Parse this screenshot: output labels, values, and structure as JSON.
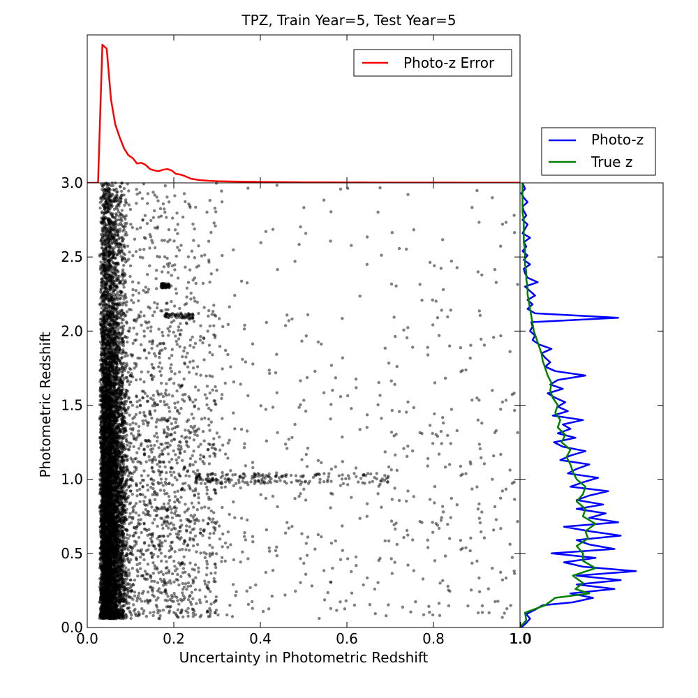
{
  "title": "TPZ, Train Year=5, Test Year=5",
  "chart_data": [
    {
      "id": "main-scatter",
      "type": "scatter",
      "xlabel": "Uncertainty in Photometric Redshift",
      "ylabel": "Photometric Redshift",
      "xlim": [
        0.0,
        1.0
      ],
      "ylim": [
        0.0,
        3.0
      ],
      "xticks": [
        "0.0",
        "0.2",
        "0.4",
        "0.6",
        "0.8",
        "1.0"
      ],
      "yticks": [
        "0.0",
        "0.5",
        "1.0",
        "1.5",
        "2.0",
        "2.5",
        "3.0"
      ],
      "grid": false,
      "point_color": "#000000",
      "point_opacity": 0.5,
      "density": {
        "uncertainty_mode": 0.04,
        "points_sampled": 9000,
        "redshift_bins": [
          0.1,
          0.2,
          0.3,
          0.4,
          0.5,
          0.6,
          0.7,
          0.8,
          0.9,
          1.0,
          1.1,
          1.2,
          1.3,
          1.4,
          1.5,
          1.6,
          1.7,
          1.8,
          1.9,
          2.0,
          2.1,
          2.2,
          2.3,
          2.4,
          2.5,
          2.6,
          2.7,
          2.8,
          2.9,
          3.0
        ],
        "relative_counts": [
          0.6,
          1.0,
          1.0,
          0.95,
          0.9,
          1.0,
          0.95,
          0.95,
          0.9,
          1.0,
          0.85,
          0.8,
          0.8,
          0.75,
          0.7,
          0.75,
          0.55,
          0.5,
          0.45,
          0.5,
          0.4,
          0.35,
          0.3,
          0.3,
          0.3,
          0.3,
          0.3,
          0.25,
          0.25,
          0.2
        ]
      },
      "features": [
        {
          "x_range": [
            0.18,
            0.245
          ],
          "y": 2.1
        },
        {
          "x_range": [
            0.17,
            0.19
          ],
          "y": 2.3
        }
      ]
    },
    {
      "id": "top-histogram",
      "type": "line",
      "legend": [
        {
          "name": "Photo-z Error",
          "color": "#ff0000"
        }
      ],
      "legend_position": "top-right",
      "xlim": [
        0.0,
        1.0
      ],
      "series": [
        {
          "name": "Photo-z Error",
          "color": "#ff0000",
          "x": [
            0.0,
            0.025,
            0.035,
            0.045,
            0.055,
            0.065,
            0.075,
            0.085,
            0.095,
            0.105,
            0.115,
            0.125,
            0.135,
            0.145,
            0.155,
            0.165,
            0.175,
            0.185,
            0.195,
            0.205,
            0.215,
            0.225,
            0.24,
            0.26,
            0.28,
            0.3,
            0.33,
            0.37,
            0.42,
            0.5,
            0.6,
            0.7,
            0.8,
            0.9,
            1.0
          ],
          "y": [
            0.0,
            0.0,
            1.0,
            0.97,
            0.6,
            0.42,
            0.33,
            0.25,
            0.2,
            0.18,
            0.14,
            0.145,
            0.13,
            0.1,
            0.09,
            0.085,
            0.095,
            0.1,
            0.09,
            0.065,
            0.06,
            0.05,
            0.03,
            0.02,
            0.015,
            0.012,
            0.01,
            0.008,
            0.006,
            0.004,
            0.003,
            0.002,
            0.002,
            0.001,
            0.001
          ]
        }
      ]
    },
    {
      "id": "right-histogram",
      "type": "line",
      "orientation": "horizontal",
      "legend": [
        {
          "name": "Photo-z",
          "color": "#0000ff"
        },
        {
          "name": "True z",
          "color": "#008000"
        }
      ],
      "legend_position": "top",
      "xticks": [
        "1.0"
      ],
      "ylim": [
        0.0,
        3.0
      ],
      "series": [
        {
          "name": "Photo-z",
          "color": "#0000ff",
          "redshift": [
            0.0,
            0.03,
            0.06,
            0.09,
            0.12,
            0.15,
            0.17,
            0.2,
            0.23,
            0.26,
            0.29,
            0.32,
            0.35,
            0.38,
            0.41,
            0.44,
            0.47,
            0.5,
            0.53,
            0.56,
            0.59,
            0.62,
            0.65,
            0.68,
            0.71,
            0.74,
            0.77,
            0.8,
            0.83,
            0.86,
            0.89,
            0.92,
            0.95,
            0.98,
            1.01,
            1.04,
            1.07,
            1.1,
            1.13,
            1.16,
            1.19,
            1.22,
            1.25,
            1.28,
            1.31,
            1.34,
            1.37,
            1.4,
            1.43,
            1.46,
            1.49,
            1.52,
            1.55,
            1.58,
            1.61,
            1.64,
            1.67,
            1.7,
            1.73,
            1.76,
            1.79,
            1.82,
            1.85,
            1.88,
            1.91,
            1.94,
            1.97,
            2.0,
            2.03,
            2.06,
            2.09,
            2.12,
            2.15,
            2.18,
            2.21,
            2.24,
            2.27,
            2.3,
            2.33,
            2.36,
            2.39,
            2.42,
            2.45,
            2.48,
            2.51,
            2.54,
            2.57,
            2.6,
            2.63,
            2.66,
            2.69,
            2.72,
            2.75,
            2.78,
            2.81,
            2.84,
            2.87,
            2.9,
            2.93,
            2.96,
            3.0
          ],
          "density": [
            0.01,
            0.05,
            0.08,
            0.05,
            0.12,
            0.18,
            0.42,
            0.58,
            0.4,
            0.75,
            0.45,
            0.8,
            0.45,
            0.92,
            0.5,
            0.35,
            0.6,
            0.25,
            0.75,
            0.55,
            0.45,
            0.8,
            0.55,
            0.35,
            0.78,
            0.55,
            0.68,
            0.45,
            0.66,
            0.45,
            0.55,
            0.7,
            0.4,
            0.5,
            0.62,
            0.38,
            0.45,
            0.55,
            0.32,
            0.4,
            0.52,
            0.34,
            0.27,
            0.44,
            0.3,
            0.4,
            0.34,
            0.5,
            0.26,
            0.38,
            0.3,
            0.36,
            0.28,
            0.22,
            0.34,
            0.24,
            0.3,
            0.52,
            0.28,
            0.2,
            0.24,
            0.2,
            0.17,
            0.25,
            0.15,
            0.1,
            0.12,
            0.08,
            0.1,
            0.09,
            0.78,
            0.12,
            0.06,
            0.1,
            0.06,
            0.12,
            0.08,
            0.04,
            0.14,
            0.06,
            0.04,
            0.03,
            0.08,
            0.03,
            0.06,
            0.02,
            0.05,
            0.03,
            0.08,
            0.02,
            0.04,
            0.06,
            0.02,
            0.05,
            0.03,
            0.02,
            0.06,
            0.03,
            0.01,
            0.04,
            0.02
          ]
        },
        {
          "name": "True z",
          "color": "#008000",
          "redshift": [
            0.0,
            0.05,
            0.1,
            0.15,
            0.2,
            0.23,
            0.26,
            0.3,
            0.35,
            0.4,
            0.45,
            0.5,
            0.55,
            0.6,
            0.65,
            0.7,
            0.75,
            0.8,
            0.85,
            0.9,
            0.95,
            1.0,
            1.05,
            1.1,
            1.15,
            1.2,
            1.25,
            1.3,
            1.35,
            1.4,
            1.45,
            1.5,
            1.55,
            1.6,
            1.65,
            1.7,
            1.75,
            1.8,
            1.85,
            1.9,
            1.95,
            2.0,
            2.05,
            2.1,
            2.15,
            2.2,
            2.25,
            2.3,
            2.35,
            2.4,
            2.45,
            2.5,
            2.55,
            2.6,
            2.65,
            2.7,
            2.75,
            2.8,
            2.85,
            2.9,
            2.95,
            3.0
          ],
          "density": [
            0.0,
            0.05,
            0.04,
            0.2,
            0.28,
            0.55,
            0.44,
            0.5,
            0.42,
            0.6,
            0.5,
            0.5,
            0.45,
            0.54,
            0.52,
            0.6,
            0.5,
            0.52,
            0.45,
            0.5,
            0.52,
            0.45,
            0.42,
            0.4,
            0.37,
            0.4,
            0.33,
            0.36,
            0.3,
            0.32,
            0.28,
            0.3,
            0.26,
            0.24,
            0.25,
            0.22,
            0.2,
            0.18,
            0.17,
            0.15,
            0.13,
            0.11,
            0.1,
            0.09,
            0.08,
            0.07,
            0.06,
            0.06,
            0.05,
            0.05,
            0.04,
            0.04,
            0.04,
            0.03,
            0.03,
            0.03,
            0.03,
            0.02,
            0.02,
            0.02,
            0.02,
            0.02
          ]
        }
      ]
    }
  ]
}
